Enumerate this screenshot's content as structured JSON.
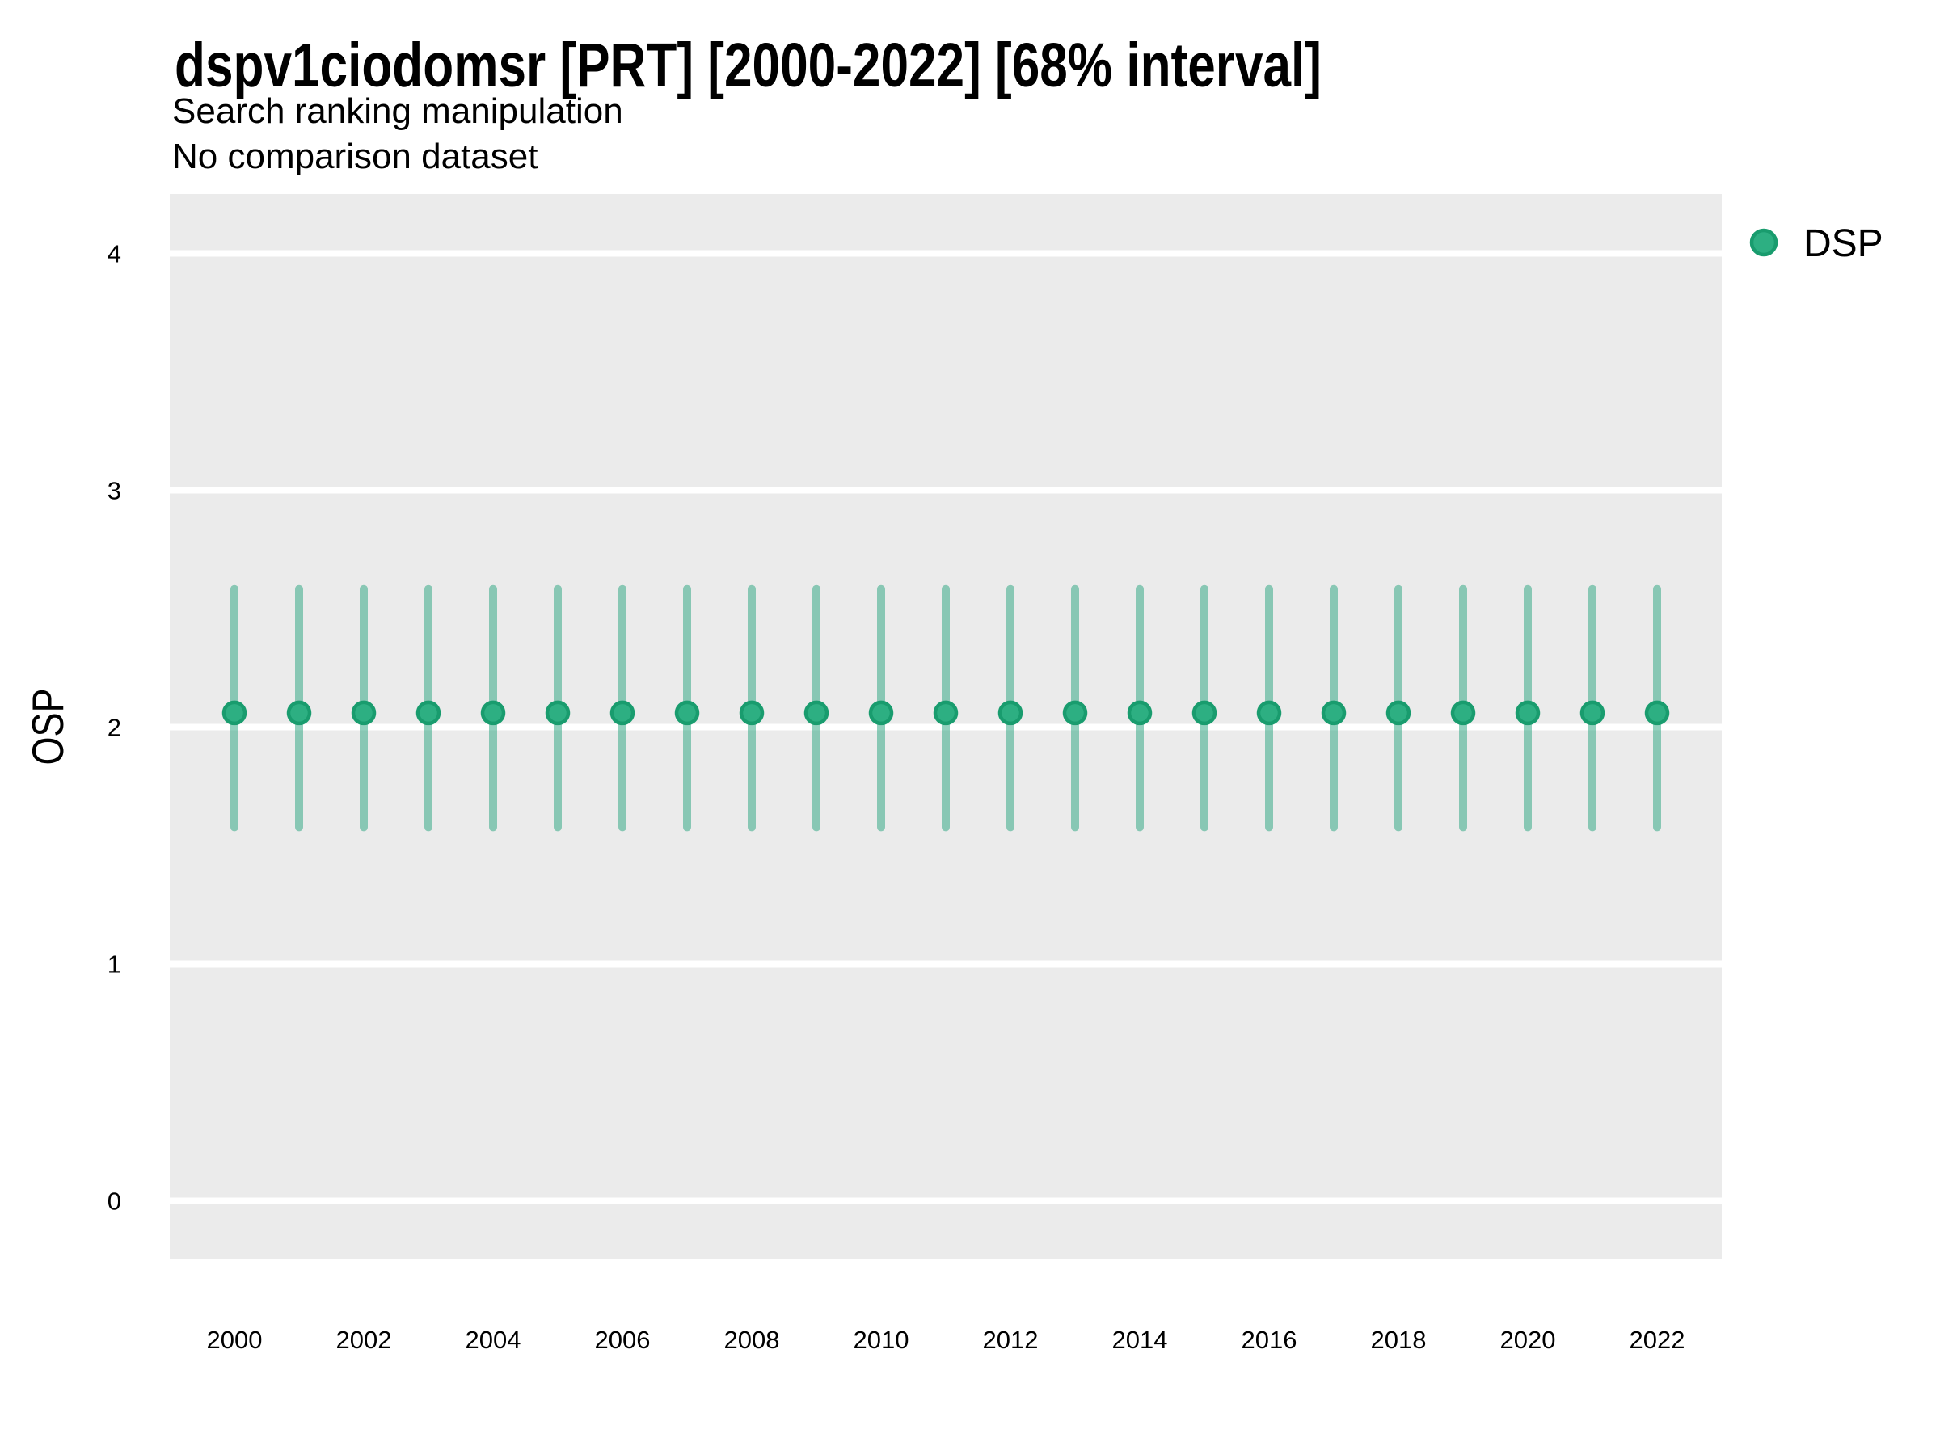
{
  "title": "dspv1ciodomsr [PRT] [2000-2022] [68% interval]",
  "subtitle": "Search ranking manipulation",
  "note": "No comparison dataset",
  "colors": {
    "accent_green": "#1b9e77",
    "marker_fill": "#2daf82",
    "marker_edge": "#199c6e",
    "interval_bar": "rgba(27,158,119,0.48)",
    "panel_background": "#ebebeb",
    "gridline": "#ffffff",
    "text": "#000000"
  },
  "legend": {
    "items": [
      {
        "label": "DSP"
      }
    ]
  },
  "chart_data": {
    "type": "scatter",
    "title": "dspv1ciodomsr [PRT] [2000-2022] [68% interval]",
    "subtitle": "Search ranking manipulation",
    "note": "No comparison dataset",
    "xlabel": "",
    "ylabel": "OSP",
    "interval_level": "68%",
    "x": [
      2000,
      2001,
      2002,
      2003,
      2004,
      2005,
      2006,
      2007,
      2008,
      2009,
      2010,
      2011,
      2012,
      2013,
      2014,
      2015,
      2016,
      2017,
      2018,
      2019,
      2020,
      2021,
      2022
    ],
    "series": [
      {
        "name": "DSP",
        "estimate": [
          2.06,
          2.06,
          2.06,
          2.06,
          2.06,
          2.06,
          2.06,
          2.06,
          2.06,
          2.06,
          2.06,
          2.06,
          2.06,
          2.06,
          2.06,
          2.06,
          2.06,
          2.06,
          2.06,
          2.06,
          2.06,
          2.06,
          2.06
        ],
        "interval_low": [
          1.56,
          1.56,
          1.56,
          1.56,
          1.56,
          1.56,
          1.56,
          1.56,
          1.56,
          1.56,
          1.56,
          1.56,
          1.56,
          1.56,
          1.56,
          1.56,
          1.56,
          1.56,
          1.56,
          1.56,
          1.56,
          1.56,
          1.56
        ],
        "interval_high": [
          2.6,
          2.6,
          2.6,
          2.6,
          2.6,
          2.6,
          2.6,
          2.6,
          2.6,
          2.6,
          2.6,
          2.6,
          2.6,
          2.6,
          2.6,
          2.6,
          2.6,
          2.6,
          2.6,
          2.6,
          2.6,
          2.6,
          2.6
        ]
      }
    ],
    "ylim": [
      -0.25,
      4.25
    ],
    "yticks": [
      0,
      1,
      2,
      3,
      4
    ],
    "xticks": [
      2000,
      2002,
      2004,
      2006,
      2008,
      2010,
      2012,
      2014,
      2016,
      2018,
      2020,
      2022
    ],
    "grid": "horizontal-only",
    "legend_position": "top-right-outside"
  }
}
